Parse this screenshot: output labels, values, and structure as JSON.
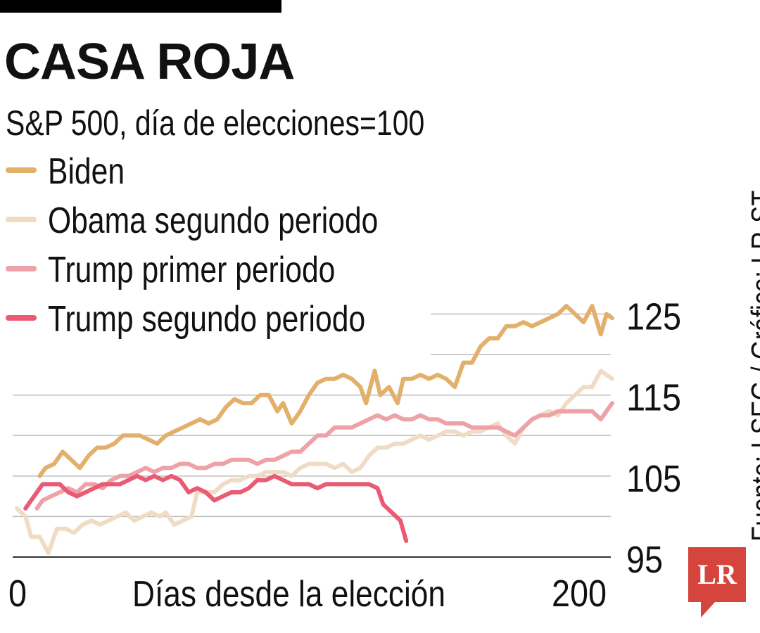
{
  "title": "CASA ROJA",
  "subtitle": "S&P 500, día de elecciones=100",
  "source": "Fuente: LSEG / Gráfico: LR-ST",
  "logo_text": "LR",
  "colors": {
    "biden": "#e2b06b",
    "obama": "#f0dcc5",
    "trump1": "#eea2a8",
    "trump2": "#ea5b73",
    "grid": "#bdbdbd",
    "axis": "#333333",
    "logo": "#d5453e"
  },
  "chart_data": {
    "type": "line",
    "title": "CASA ROJA",
    "subtitle": "S&P 500, día de elecciones=100",
    "xlabel": "Días desde la elección",
    "ylabel": "",
    "xlim": [
      0,
      208
    ],
    "ylim": [
      95,
      128
    ],
    "x_ticks": [
      {
        "value": 0,
        "label": "0"
      },
      {
        "value": 200,
        "label": "200"
      }
    ],
    "y_ticks": [
      {
        "value": 95,
        "label": "95"
      },
      {
        "value": 105,
        "label": "105"
      },
      {
        "value": 115,
        "label": "115"
      },
      {
        "value": 125,
        "label": "125"
      }
    ],
    "gridlines": [
      95,
      100,
      105,
      110,
      115,
      120,
      125
    ],
    "legend": [
      "Biden",
      "Obama segundo periodo",
      "Trump primer periodo",
      "Trump segundo periodo"
    ],
    "series": [
      {
        "name": "Obama segundo periodo",
        "color_key": "obama",
        "points": [
          [
            0,
            101
          ],
          [
            3,
            100
          ],
          [
            5,
            97.5
          ],
          [
            8,
            97.5
          ],
          [
            11,
            95.5
          ],
          [
            14,
            98.5
          ],
          [
            17,
            98.5
          ],
          [
            20,
            98
          ],
          [
            23,
            99
          ],
          [
            26,
            99.5
          ],
          [
            29,
            99
          ],
          [
            32,
            99.5
          ],
          [
            35,
            100
          ],
          [
            38,
            100.5
          ],
          [
            41,
            99.5
          ],
          [
            44,
            100
          ],
          [
            47,
            100.5
          ],
          [
            50,
            100
          ],
          [
            52,
            100.5
          ],
          [
            55,
            99
          ],
          [
            58,
            99.5
          ],
          [
            61,
            100
          ],
          [
            63,
            103
          ],
          [
            66,
            103
          ],
          [
            69,
            103
          ],
          [
            72,
            104
          ],
          [
            75,
            104.5
          ],
          [
            78,
            104.5
          ],
          [
            81,
            105
          ],
          [
            84,
            105
          ],
          [
            87,
            105.5
          ],
          [
            90,
            105.5
          ],
          [
            93,
            105.5
          ],
          [
            96,
            105
          ],
          [
            99,
            106
          ],
          [
            102,
            106.5
          ],
          [
            105,
            106.5
          ],
          [
            108,
            106.5
          ],
          [
            111,
            106
          ],
          [
            114,
            106.5
          ],
          [
            117,
            105.5
          ],
          [
            120,
            106
          ],
          [
            123,
            107.5
          ],
          [
            126,
            108.5
          ],
          [
            129,
            108.5
          ],
          [
            132,
            109
          ],
          [
            135,
            109
          ],
          [
            138,
            109.5
          ],
          [
            141,
            110
          ],
          [
            144,
            109.5
          ],
          [
            147,
            110
          ],
          [
            150,
            110.5
          ],
          [
            153,
            110.5
          ],
          [
            156,
            110
          ],
          [
            159,
            110.5
          ],
          [
            162,
            110.5
          ],
          [
            165,
            111
          ],
          [
            168,
            111.5
          ],
          [
            171,
            110
          ],
          [
            174,
            109
          ],
          [
            177,
            111
          ],
          [
            180,
            112
          ],
          [
            183,
            112.5
          ],
          [
            186,
            113
          ],
          [
            189,
            112.5
          ],
          [
            192,
            114
          ],
          [
            195,
            115
          ],
          [
            198,
            116
          ],
          [
            201,
            116
          ],
          [
            204,
            118
          ],
          [
            208,
            117
          ]
        ]
      },
      {
        "name": "Trump primer periodo",
        "color_key": "trump1",
        "points": [
          [
            7,
            101
          ],
          [
            9,
            102
          ],
          [
            12,
            102.5
          ],
          [
            15,
            103
          ],
          [
            18,
            103.5
          ],
          [
            21,
            103
          ],
          [
            24,
            104
          ],
          [
            27,
            104
          ],
          [
            30,
            103.5
          ],
          [
            33,
            104.5
          ],
          [
            36,
            105
          ],
          [
            39,
            105
          ],
          [
            42,
            105.5
          ],
          [
            45,
            106
          ],
          [
            48,
            105.5
          ],
          [
            51,
            106
          ],
          [
            54,
            106
          ],
          [
            57,
            106.5
          ],
          [
            60,
            106.5
          ],
          [
            63,
            106
          ],
          [
            66,
            106
          ],
          [
            69,
            106.5
          ],
          [
            72,
            106.5
          ],
          [
            75,
            107
          ],
          [
            78,
            107
          ],
          [
            81,
            107
          ],
          [
            84,
            106.5
          ],
          [
            87,
            107
          ],
          [
            90,
            107
          ],
          [
            93,
            107.5
          ],
          [
            96,
            108
          ],
          [
            99,
            108
          ],
          [
            102,
            109
          ],
          [
            105,
            110
          ],
          [
            108,
            110
          ],
          [
            111,
            111
          ],
          [
            114,
            111
          ],
          [
            117,
            111
          ],
          [
            120,
            111.5
          ],
          [
            123,
            112
          ],
          [
            126,
            112.5
          ],
          [
            129,
            112
          ],
          [
            132,
            112.5
          ],
          [
            135,
            112
          ],
          [
            138,
            112
          ],
          [
            141,
            112.5
          ],
          [
            144,
            112
          ],
          [
            147,
            112
          ],
          [
            150,
            111.5
          ],
          [
            153,
            111.5
          ],
          [
            156,
            111.5
          ],
          [
            159,
            111
          ],
          [
            162,
            111
          ],
          [
            165,
            111
          ],
          [
            168,
            111
          ],
          [
            171,
            110.5
          ],
          [
            174,
            110
          ],
          [
            177,
            111
          ],
          [
            180,
            112
          ],
          [
            183,
            112.5
          ],
          [
            186,
            112.5
          ],
          [
            189,
            113
          ],
          [
            192,
            113
          ],
          [
            195,
            113
          ],
          [
            198,
            113
          ],
          [
            201,
            113
          ],
          [
            204,
            112
          ],
          [
            208,
            114
          ]
        ]
      },
      {
        "name": "Biden",
        "color_key": "biden",
        "points": [
          [
            8,
            105
          ],
          [
            10,
            106
          ],
          [
            13,
            106.5
          ],
          [
            16,
            108
          ],
          [
            19,
            107
          ],
          [
            22,
            106
          ],
          [
            25,
            107.5
          ],
          [
            28,
            108.5
          ],
          [
            31,
            108.5
          ],
          [
            34,
            109
          ],
          [
            37,
            110
          ],
          [
            40,
            110
          ],
          [
            43,
            110
          ],
          [
            46,
            109.5
          ],
          [
            49,
            109
          ],
          [
            52,
            110
          ],
          [
            55,
            110.5
          ],
          [
            58,
            111
          ],
          [
            61,
            111.5
          ],
          [
            64,
            112
          ],
          [
            67,
            111.5
          ],
          [
            70,
            112
          ],
          [
            73,
            113.5
          ],
          [
            76,
            114.5
          ],
          [
            79,
            114
          ],
          [
            82,
            114
          ],
          [
            85,
            115
          ],
          [
            88,
            115
          ],
          [
            91,
            113
          ],
          [
            93,
            114
          ],
          [
            96,
            111.5
          ],
          [
            99,
            113
          ],
          [
            102,
            115
          ],
          [
            105,
            116.5
          ],
          [
            108,
            117
          ],
          [
            111,
            117
          ],
          [
            114,
            117.5
          ],
          [
            117,
            117
          ],
          [
            120,
            116
          ],
          [
            122,
            114
          ],
          [
            125,
            118
          ],
          [
            127,
            115
          ],
          [
            130,
            116
          ],
          [
            133,
            114
          ],
          [
            135,
            117
          ],
          [
            138,
            117
          ],
          [
            141,
            117.5
          ],
          [
            144,
            117
          ],
          [
            147,
            117.5
          ],
          [
            150,
            117
          ],
          [
            153,
            116
          ],
          [
            156,
            119
          ],
          [
            159,
            119
          ],
          [
            162,
            121
          ],
          [
            165,
            122
          ],
          [
            168,
            122
          ],
          [
            171,
            123.5
          ],
          [
            174,
            123.5
          ],
          [
            177,
            124
          ],
          [
            180,
            123.5
          ],
          [
            183,
            124
          ],
          [
            186,
            124.5
          ],
          [
            189,
            125
          ],
          [
            192,
            126
          ],
          [
            195,
            125
          ],
          [
            198,
            124
          ],
          [
            201,
            126
          ],
          [
            204,
            122.5
          ],
          [
            206,
            125
          ],
          [
            208,
            124.5
          ]
        ]
      },
      {
        "name": "Trump segundo periodo",
        "color_key": "trump2",
        "points": [
          [
            3,
            101
          ],
          [
            6,
            102.5
          ],
          [
            9,
            104
          ],
          [
            12,
            104
          ],
          [
            15,
            104
          ],
          [
            18,
            103
          ],
          [
            21,
            102.5
          ],
          [
            24,
            103
          ],
          [
            27,
            103.5
          ],
          [
            30,
            104
          ],
          [
            33,
            104
          ],
          [
            36,
            104
          ],
          [
            39,
            104.5
          ],
          [
            42,
            105
          ],
          [
            45,
            104.5
          ],
          [
            48,
            105
          ],
          [
            51,
            104.5
          ],
          [
            54,
            105
          ],
          [
            57,
            104.5
          ],
          [
            60,
            103
          ],
          [
            63,
            103.5
          ],
          [
            66,
            103
          ],
          [
            69,
            102
          ],
          [
            72,
            102.5
          ],
          [
            75,
            103
          ],
          [
            78,
            103
          ],
          [
            81,
            103.5
          ],
          [
            84,
            104.5
          ],
          [
            87,
            104.5
          ],
          [
            90,
            105
          ],
          [
            93,
            104.5
          ],
          [
            96,
            104
          ],
          [
            99,
            104
          ],
          [
            102,
            104
          ],
          [
            105,
            103.5
          ],
          [
            108,
            104
          ],
          [
            111,
            104
          ],
          [
            114,
            104
          ],
          [
            117,
            104
          ],
          [
            120,
            104
          ],
          [
            123,
            104
          ],
          [
            126,
            103.5
          ],
          [
            128,
            101.5
          ],
          [
            131,
            100.5
          ],
          [
            134,
            99.5
          ],
          [
            136,
            97
          ]
        ]
      }
    ]
  }
}
